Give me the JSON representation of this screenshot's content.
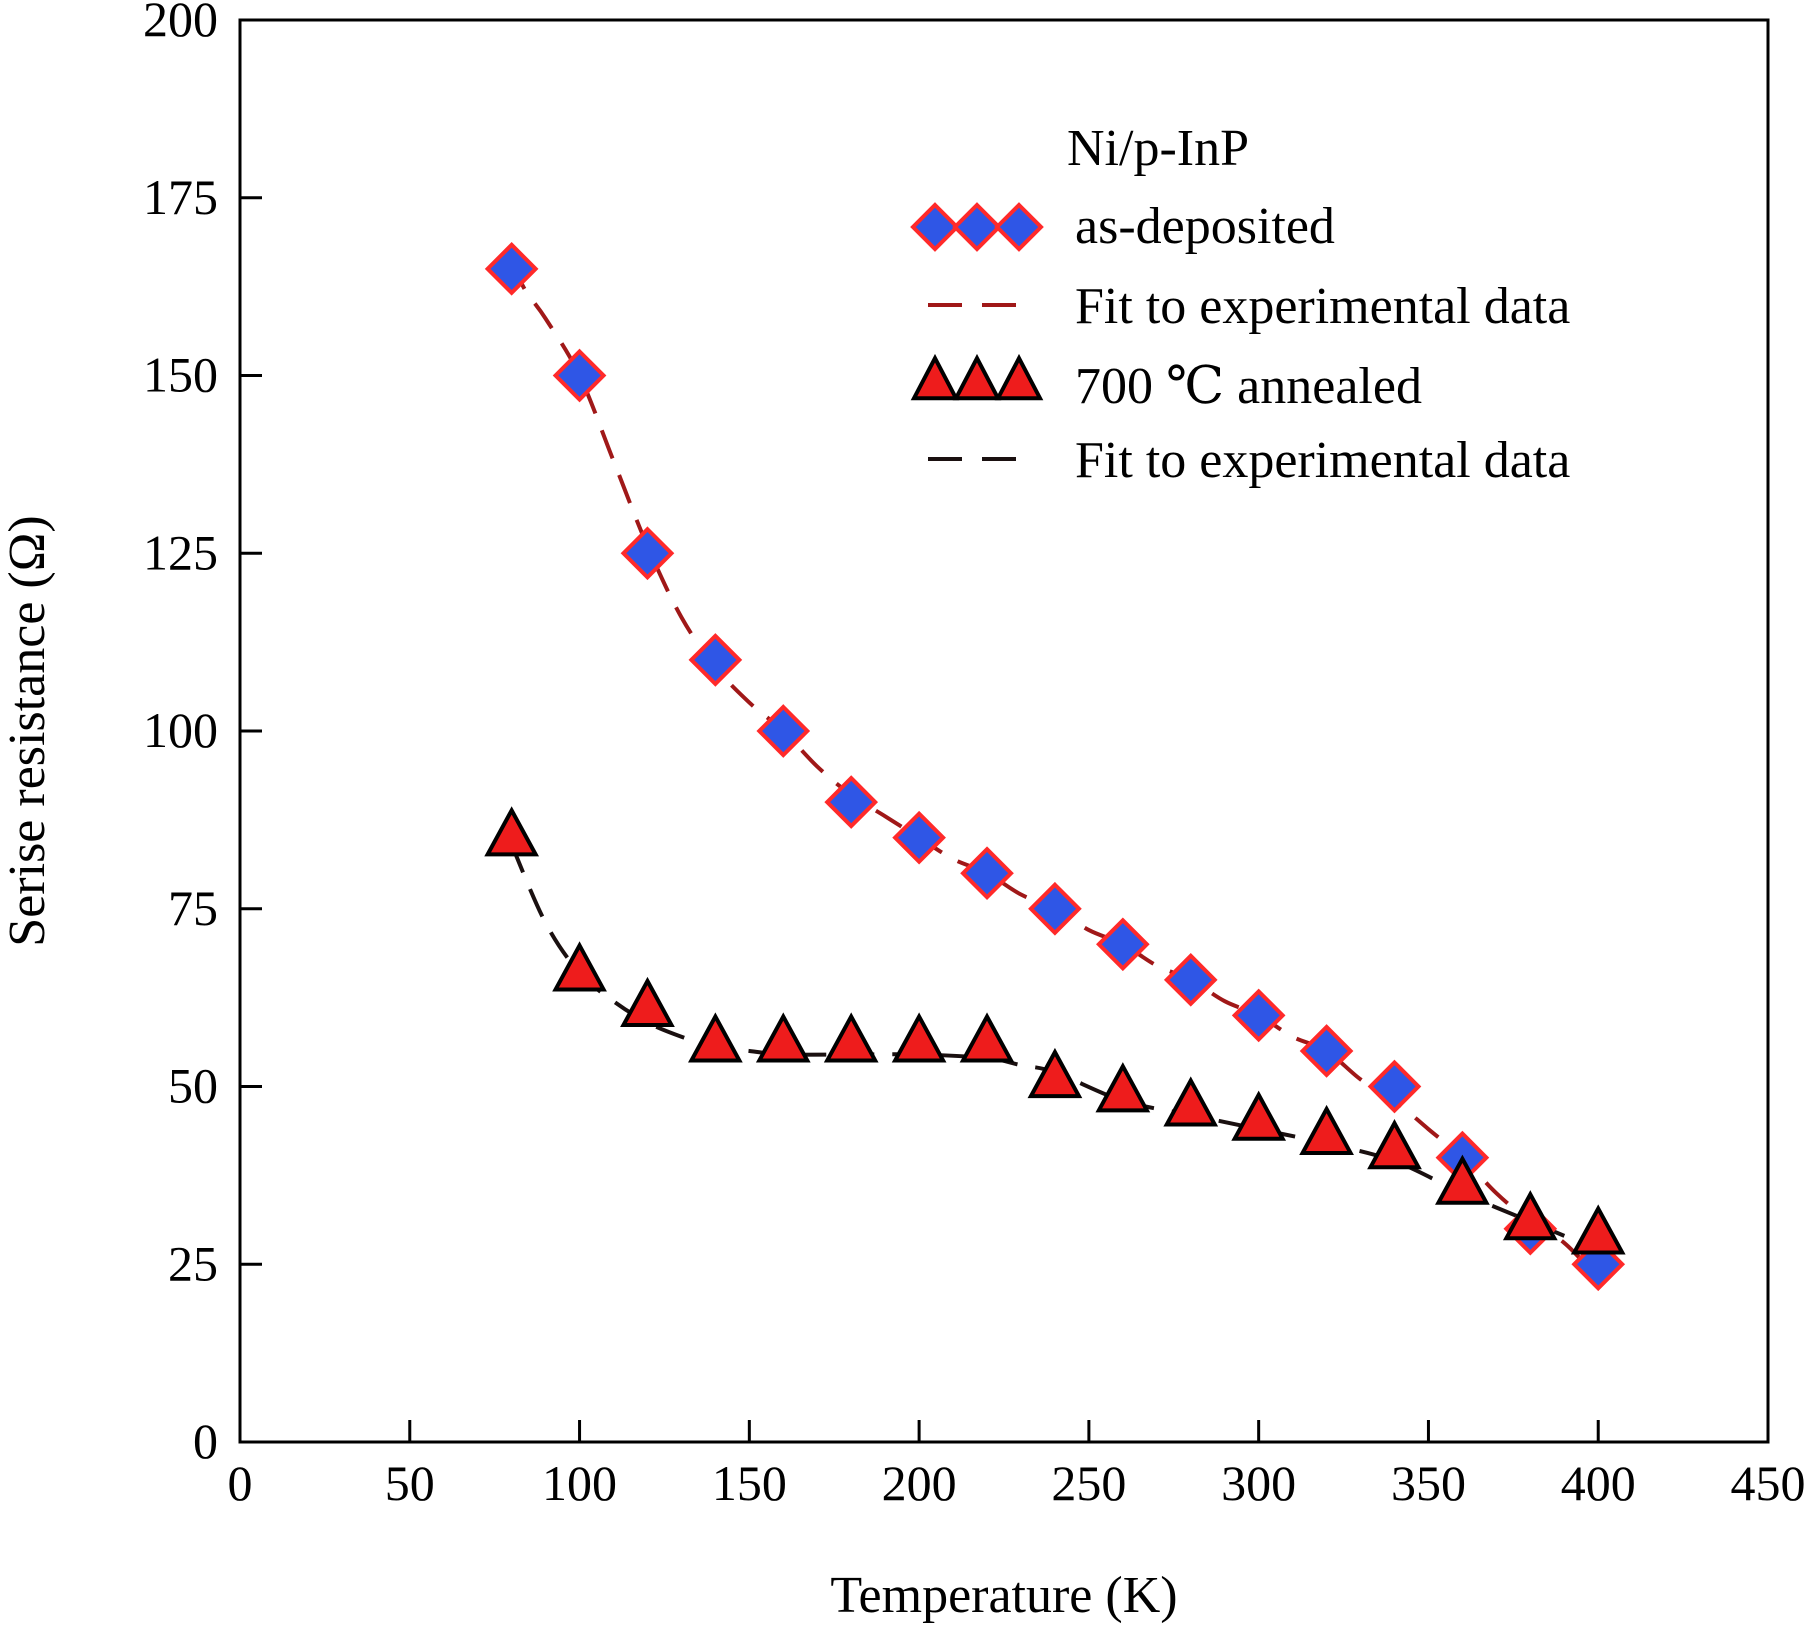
{
  "chart_data": {
    "type": "scatter",
    "title": "",
    "xlabel": "Temperature (K)",
    "ylabel": "Serise resistance (Ω)",
    "xlim": [
      0,
      450
    ],
    "ylim": [
      0,
      200
    ],
    "xticks": [
      0,
      50,
      100,
      150,
      200,
      250,
      300,
      350,
      400,
      450
    ],
    "yticks": [
      0,
      25,
      50,
      75,
      100,
      125,
      150,
      175,
      200
    ],
    "grid": false,
    "legend_title": "Ni/p-InP",
    "legend_position": "top-right",
    "series": [
      {
        "name": "as-deposited",
        "kind": "marker",
        "marker": "diamond",
        "fill": "#2f56e6",
        "stroke": "#ff2a2a",
        "x": [
          80,
          100,
          120,
          140,
          160,
          180,
          200,
          220,
          240,
          260,
          280,
          300,
          320,
          340,
          360,
          380,
          400
        ],
        "y": [
          165,
          150,
          125,
          110,
          100,
          90,
          85,
          80,
          75,
          70,
          65,
          60,
          55,
          50,
          40,
          30,
          25
        ]
      },
      {
        "name": "Fit to experimental data",
        "kind": "fit",
        "color": "#a01818",
        "x": [
          80,
          84,
          90,
          100,
          110,
          120,
          130,
          140,
          150,
          160,
          170,
          180,
          190,
          200,
          210,
          220,
          230,
          240,
          250,
          260,
          270,
          280,
          290,
          300,
          310,
          320,
          330,
          340,
          350,
          360,
          370,
          380,
          390,
          400
        ],
        "y": [
          166,
          162,
          158,
          150,
          138,
          126,
          116,
          109,
          104,
          100,
          95,
          91,
          88,
          85,
          82,
          80,
          77,
          75,
          72,
          70,
          67,
          65,
          62,
          60,
          57,
          55,
          51,
          48,
          44,
          40,
          35,
          31,
          28,
          23
        ]
      },
      {
        "name": "700 ℃ annealed",
        "kind": "marker",
        "marker": "triangle",
        "fill": "#ee1c1c",
        "stroke": "#000000",
        "x": [
          80,
          100,
          120,
          140,
          160,
          180,
          200,
          220,
          240,
          260,
          280,
          300,
          320,
          340,
          360,
          380,
          400
        ],
        "y": [
          85,
          66,
          61,
          56,
          56,
          56,
          56,
          56,
          51,
          49,
          47,
          45,
          43,
          41,
          36,
          31,
          29
        ]
      },
      {
        "name": "Fit to experimental data",
        "kind": "fit",
        "color": "#1a1010",
        "x": [
          80,
          90,
          100,
          110,
          120,
          130,
          140,
          150,
          160,
          180,
          200,
          220,
          230,
          240,
          260,
          280,
          300,
          320,
          340,
          360,
          380,
          395
        ],
        "y": [
          84,
          73,
          66,
          62,
          59,
          57,
          55.5,
          55,
          54.5,
          54.5,
          54.5,
          54,
          53,
          52,
          48,
          46,
          44,
          42,
          39.5,
          35,
          31,
          28
        ]
      }
    ]
  }
}
